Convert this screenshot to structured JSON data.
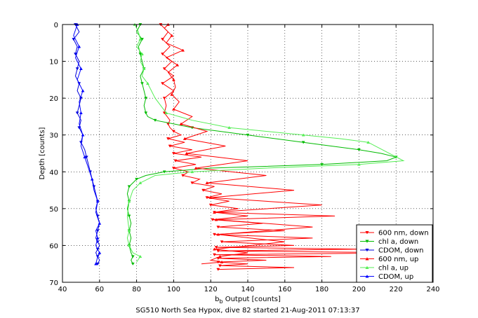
{
  "chart_data": {
    "type": "line",
    "title": "",
    "xlabel": "b",
    "xlabel_sub": "b",
    "xlabel_rest": " Output [counts]",
    "ylabel": "Depth [counts]",
    "caption": "SG510 North Sea Hypox, dive 82 started 21-Aug-2011 07:13:37",
    "xlim": [
      40,
      240
    ],
    "ylim": [
      0,
      70
    ],
    "y_reversed": true,
    "grid": "dotted",
    "legend_position": "lower-right",
    "x_ticks": [
      "40",
      "60",
      "80",
      "100",
      "120",
      "140",
      "160",
      "180",
      "200",
      "220",
      "240"
    ],
    "y_ticks": [
      "0",
      "10",
      "20",
      "30",
      "40",
      "50",
      "60",
      "70"
    ],
    "series": [
      {
        "name": "600 nm, down",
        "color": "#ff0000",
        "marker": "triangle-down",
        "x": [
          93,
          97,
          94,
          98,
          94,
          99,
          95,
          100,
          94,
          100,
          95,
          96,
          95,
          98,
          97,
          98,
          100,
          104,
          97,
          106,
          98,
          110,
          100,
          115,
          101,
          112,
          100,
          108,
          105,
          114,
          110,
          122,
          116,
          126,
          118,
          130,
          120,
          135,
          122,
          140,
          121,
          148,
          124,
          160,
          122,
          175,
          126,
          165,
          123,
          200,
          124,
          230,
          122,
          185,
          124,
          150,
          124,
          140,
          125,
          165,
          124
        ],
        "y": [
          0,
          2,
          4,
          6,
          8,
          10,
          12,
          14,
          16,
          18,
          20,
          22,
          24,
          26,
          27,
          28,
          29,
          30,
          31,
          32,
          33,
          34,
          35,
          36,
          37,
          38,
          39,
          40,
          41,
          42,
          43,
          44,
          45,
          46,
          47,
          48,
          49,
          50,
          51,
          52,
          53,
          54,
          55,
          56,
          57,
          58,
          59,
          60,
          60.5,
          61,
          61.5,
          62,
          62.5,
          63,
          63.5,
          64,
          64.5,
          65,
          65.5,
          66,
          66.5
        ]
      },
      {
        "name": "chl a, down",
        "color": "#00bb00",
        "marker": "triangle-down",
        "x": [
          82,
          80,
          83,
          81,
          82,
          83,
          84,
          82,
          83,
          84,
          85,
          84,
          85,
          86,
          90,
          100,
          110,
          125,
          140,
          155,
          170,
          185,
          200,
          212,
          220,
          215,
          180,
          120,
          95,
          85,
          80,
          78,
          76,
          75,
          76,
          75,
          76,
          77,
          76,
          77,
          76,
          77,
          78,
          77,
          78
        ],
        "y": [
          0,
          2,
          4,
          6,
          8,
          10,
          12,
          14,
          16,
          18,
          20,
          22,
          24,
          25,
          26,
          27,
          28,
          29,
          30,
          31,
          32,
          33,
          34,
          35,
          36,
          37,
          38,
          39,
          40,
          41,
          42,
          43,
          44,
          46,
          48,
          50,
          52,
          54,
          56,
          58,
          60,
          62,
          63,
          64,
          65
        ]
      },
      {
        "name": "CDOM, down",
        "color": "#0000dd",
        "marker": "triangle-down",
        "x": [
          47,
          49,
          46,
          48,
          47,
          49,
          48,
          47,
          49,
          48,
          50,
          49,
          48,
          50,
          49,
          51,
          50,
          52,
          53,
          54,
          55,
          56,
          57,
          58,
          59,
          58,
          59,
          60,
          59,
          58,
          59,
          60,
          59,
          58,
          59,
          60,
          59
        ],
        "y": [
          0,
          2,
          4,
          6,
          8,
          10,
          12,
          14,
          16,
          18,
          20,
          22,
          24,
          26,
          28,
          30,
          32,
          34,
          36,
          38,
          40,
          42,
          44,
          46,
          48,
          50,
          52,
          54,
          56,
          58,
          59,
          60,
          61,
          62,
          63,
          64,
          65
        ]
      },
      {
        "name": "600 nm, up",
        "color": "#ff0000",
        "marker": "triangle-up",
        "x": [
          97,
          95,
          99,
          96,
          105,
          96,
          102,
          97,
          100,
          101,
          99,
          103,
          100,
          110,
          104,
          118,
          106,
          128,
          107,
          140,
          112,
          150,
          118,
          165,
          120,
          180,
          122,
          187,
          123,
          175,
          124,
          160,
          122,
          140,
          125,
          120,
          126,
          115
        ],
        "y": [
          0,
          1,
          3,
          5,
          7,
          9,
          11,
          13,
          15,
          17,
          19,
          21,
          23,
          25,
          27,
          29,
          31,
          33,
          35,
          37,
          39,
          41,
          43,
          45,
          47,
          49,
          51,
          52,
          53,
          55,
          57,
          59,
          61,
          62,
          63,
          64,
          64.5,
          65
        ]
      },
      {
        "name": "chl a, up",
        "color": "#55ee55",
        "marker": "triangle-up",
        "x": [
          79,
          81,
          82,
          80,
          83,
          82,
          84,
          83,
          86,
          90,
          96,
          110,
          130,
          150,
          170,
          190,
          205,
          224,
          200,
          150,
          110,
          90,
          82,
          78,
          76,
          75,
          76,
          75,
          76,
          78,
          82,
          80
        ],
        "y": [
          0,
          2,
          4,
          6,
          8,
          10,
          12,
          14,
          16,
          20,
          24,
          26,
          28,
          29,
          30,
          31,
          32,
          37,
          38,
          39,
          40,
          41,
          43,
          45,
          48,
          52,
          56,
          58,
          60,
          62,
          63,
          64.5
        ]
      },
      {
        "name": "CDOM, up",
        "color": "#0000ff",
        "marker": "triangle-up",
        "x": [
          48,
          46,
          49,
          47,
          50,
          48,
          51,
          49,
          50,
          49,
          51,
          50,
          52,
          54,
          56,
          57,
          59,
          58,
          60,
          58,
          59,
          58,
          60,
          59,
          58
        ],
        "y": [
          0,
          3,
          6,
          9,
          12,
          15,
          18,
          21,
          24,
          27,
          30,
          33,
          36,
          39,
          42,
          45,
          48,
          51,
          54,
          56,
          58,
          60,
          62,
          63,
          65
        ]
      }
    ]
  }
}
